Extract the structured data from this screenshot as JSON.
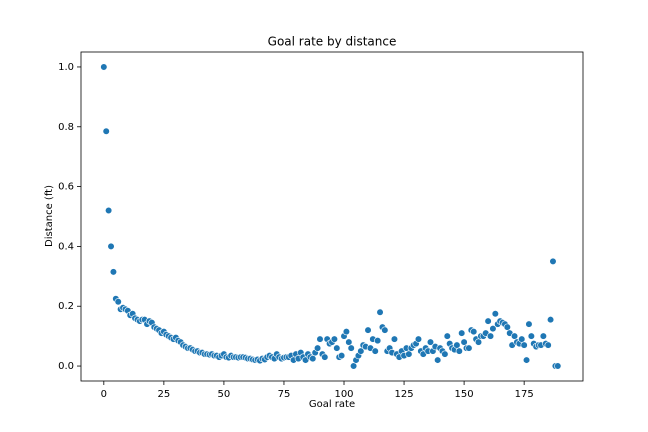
{
  "chart_data": {
    "type": "scatter",
    "title": "Goal rate by distance",
    "x_label": "Goal rate",
    "y_label": "Distance (ft)",
    "color": "#1f77b4",
    "grid": false,
    "xlim": [
      -9.5,
      199.5
    ],
    "ylim": [
      -0.05,
      1.05
    ],
    "xticks": [
      0,
      25,
      50,
      75,
      100,
      125,
      150,
      175
    ],
    "yticks": [
      {
        "value": 0,
        "label": "0.0"
      },
      0.2,
      0.4,
      0.6,
      0.8,
      {
        "value": 1,
        "label": "1.0"
      }
    ],
    "x": [
      0,
      1,
      2,
      3,
      4,
      5,
      6,
      7,
      8,
      9,
      10,
      11,
      12,
      13,
      14,
      15,
      16,
      17,
      18,
      19,
      20,
      21,
      22,
      23,
      24,
      25,
      26,
      27,
      28,
      29,
      30,
      31,
      32,
      33,
      34,
      35,
      36,
      37,
      38,
      39,
      40,
      41,
      42,
      43,
      44,
      45,
      46,
      47,
      48,
      49,
      50,
      51,
      52,
      53,
      54,
      55,
      56,
      57,
      58,
      59,
      60,
      61,
      62,
      63,
      64,
      65,
      66,
      67,
      68,
      69,
      70,
      71,
      72,
      73,
      74,
      75,
      76,
      77,
      78,
      79,
      80,
      81,
      82,
      83,
      84,
      85,
      86,
      87,
      88,
      89,
      90,
      91,
      92,
      93,
      94,
      95,
      96,
      97,
      98,
      99,
      100,
      101,
      102,
      103,
      104,
      105,
      106,
      107,
      108,
      109,
      110,
      111,
      112,
      113,
      114,
      115,
      116,
      117,
      118,
      119,
      120,
      121,
      122,
      123,
      124,
      125,
      126,
      127,
      128,
      129,
      130,
      131,
      132,
      133,
      134,
      135,
      136,
      137,
      138,
      139,
      140,
      141,
      142,
      143,
      144,
      145,
      146,
      147,
      148,
      149,
      150,
      151,
      152,
      153,
      154,
      155,
      156,
      157,
      158,
      159,
      160,
      161,
      162,
      163,
      164,
      165,
      166,
      167,
      168,
      169,
      170,
      171,
      172,
      173,
      174,
      175,
      176,
      177,
      178,
      179,
      180,
      181,
      182,
      183,
      184,
      185,
      186,
      187,
      188,
      189
    ],
    "values": [
      1.0,
      0.785,
      0.52,
      0.4,
      0.315,
      0.225,
      0.215,
      0.19,
      0.195,
      0.19,
      0.185,
      0.17,
      0.175,
      0.16,
      0.155,
      0.15,
      0.155,
      0.155,
      0.14,
      0.15,
      0.145,
      0.13,
      0.125,
      0.12,
      0.11,
      0.115,
      0.105,
      0.1,
      0.095,
      0.09,
      0.095,
      0.085,
      0.08,
      0.07,
      0.065,
      0.06,
      0.06,
      0.055,
      0.05,
      0.05,
      0.045,
      0.045,
      0.04,
      0.04,
      0.038,
      0.04,
      0.035,
      0.035,
      0.03,
      0.035,
      0.04,
      0.03,
      0.028,
      0.035,
      0.03,
      0.03,
      0.028,
      0.03,
      0.03,
      0.028,
      0.025,
      0.025,
      0.022,
      0.02,
      0.022,
      0.018,
      0.025,
      0.022,
      0.03,
      0.035,
      0.03,
      0.025,
      0.04,
      0.03,
      0.025,
      0.028,
      0.03,
      0.03,
      0.035,
      0.02,
      0.04,
      0.025,
      0.045,
      0.03,
      0.02,
      0.04,
      0.03,
      0.025,
      0.045,
      0.06,
      0.09,
      0.04,
      0.03,
      0.09,
      0.075,
      0.08,
      0.09,
      0.06,
      0.03,
      0.035,
      0.1,
      0.115,
      0.08,
      0.06,
      0.0,
      0.02,
      0.035,
      0.05,
      0.07,
      0.065,
      0.12,
      0.06,
      0.09,
      0.05,
      0.085,
      0.18,
      0.13,
      0.12,
      0.05,
      0.06,
      0.045,
      0.09,
      0.04,
      0.03,
      0.05,
      0.035,
      0.06,
      0.04,
      0.06,
      0.07,
      0.075,
      0.09,
      0.05,
      0.04,
      0.06,
      0.05,
      0.08,
      0.05,
      0.065,
      0.02,
      0.06,
      0.05,
      0.04,
      0.1,
      0.075,
      0.06,
      0.055,
      0.07,
      0.05,
      0.11,
      0.08,
      0.06,
      0.06,
      0.12,
      0.115,
      0.09,
      0.08,
      0.1,
      0.1,
      0.11,
      0.15,
      0.1,
      0.125,
      0.175,
      0.14,
      0.15,
      0.145,
      0.14,
      0.13,
      0.11,
      0.07,
      0.1,
      0.08,
      0.075,
      0.09,
      0.07,
      0.02,
      0.14,
      0.1,
      0.075,
      0.065,
      0.07,
      0.07,
      0.1,
      0.075,
      0.07,
      0.155,
      0.35,
      0.0,
      0.0
    ]
  }
}
